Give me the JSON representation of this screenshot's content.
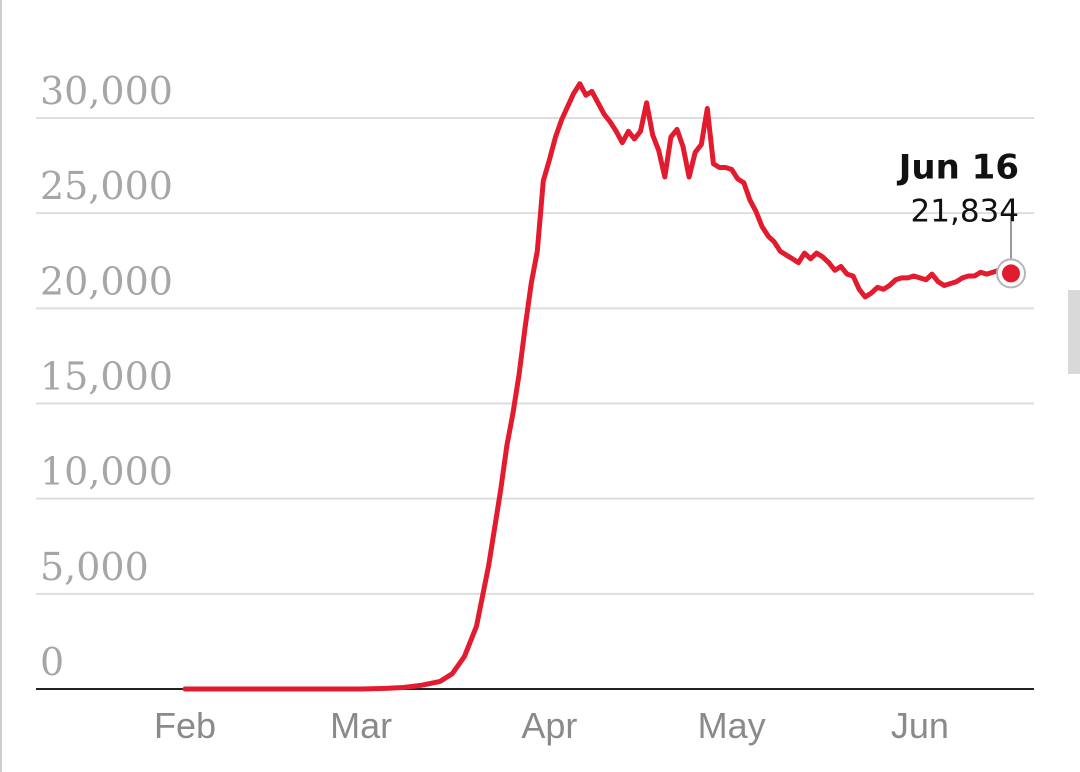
{
  "chart_data": {
    "type": "line",
    "title": "",
    "xlabel": "",
    "ylabel": "",
    "ylim": [
      0,
      30000
    ],
    "y_ticks": [
      {
        "value": 0,
        "label": "0"
      },
      {
        "value": 5000,
        "label": "5,000"
      },
      {
        "value": 10000,
        "label": "10,000"
      },
      {
        "value": 15000,
        "label": "15,000"
      },
      {
        "value": 20000,
        "label": "20,000"
      },
      {
        "value": 25000,
        "label": "25,000"
      },
      {
        "value": 30000,
        "label": "30,000"
      }
    ],
    "x_ticks": [
      {
        "date": "2020-02-01",
        "label": "Feb"
      },
      {
        "date": "2020-03-01",
        "label": "Mar"
      },
      {
        "date": "2020-04-01",
        "label": "Apr"
      },
      {
        "date": "2020-05-01",
        "label": "May"
      },
      {
        "date": "2020-06-01",
        "label": "Jun"
      }
    ],
    "xlim": [
      "2020-02-01",
      "2020-06-16"
    ],
    "grid": true,
    "line_color": "#e31b2f",
    "series": [
      {
        "points": [
          [
            "2020-02-01",
            0
          ],
          [
            "2020-02-05",
            0
          ],
          [
            "2020-02-10",
            0
          ],
          [
            "2020-02-15",
            0
          ],
          [
            "2020-02-20",
            0
          ],
          [
            "2020-02-25",
            0
          ],
          [
            "2020-03-01",
            0
          ],
          [
            "2020-03-05",
            30
          ],
          [
            "2020-03-08",
            80
          ],
          [
            "2020-03-11",
            200
          ],
          [
            "2020-03-14",
            400
          ],
          [
            "2020-03-16",
            800
          ],
          [
            "2020-03-18",
            1700
          ],
          [
            "2020-03-20",
            3300
          ],
          [
            "2020-03-22",
            6500
          ],
          [
            "2020-03-24",
            10500
          ],
          [
            "2020-03-25",
            12800
          ],
          [
            "2020-03-26",
            14500
          ],
          [
            "2020-03-27",
            16500
          ],
          [
            "2020-03-28",
            19000
          ],
          [
            "2020-03-29",
            21300
          ],
          [
            "2020-03-30",
            23000
          ],
          [
            "2020-03-31",
            26700
          ],
          [
            "2020-04-01",
            27800
          ],
          [
            "2020-04-02",
            29000
          ],
          [
            "2020-04-03",
            29900
          ],
          [
            "2020-04-04",
            30600
          ],
          [
            "2020-04-05",
            31300
          ],
          [
            "2020-04-06",
            31800
          ],
          [
            "2020-04-07",
            31200
          ],
          [
            "2020-04-08",
            31400
          ],
          [
            "2020-04-09",
            30800
          ],
          [
            "2020-04-10",
            30200
          ],
          [
            "2020-04-11",
            29800
          ],
          [
            "2020-04-12",
            29300
          ],
          [
            "2020-04-13",
            28700
          ],
          [
            "2020-04-14",
            29300
          ],
          [
            "2020-04-15",
            28900
          ],
          [
            "2020-04-16",
            29300
          ],
          [
            "2020-04-17",
            30800
          ],
          [
            "2020-04-18",
            29100
          ],
          [
            "2020-04-19",
            28300
          ],
          [
            "2020-04-20",
            26900
          ],
          [
            "2020-04-21",
            29000
          ],
          [
            "2020-04-22",
            29400
          ],
          [
            "2020-04-23",
            28500
          ],
          [
            "2020-04-24",
            26900
          ],
          [
            "2020-04-25",
            28200
          ],
          [
            "2020-04-26",
            28600
          ],
          [
            "2020-04-27",
            30500
          ],
          [
            "2020-04-28",
            27600
          ],
          [
            "2020-04-29",
            27400
          ],
          [
            "2020-04-30",
            27400
          ],
          [
            "2020-05-01",
            27300
          ],
          [
            "2020-05-02",
            26800
          ],
          [
            "2020-05-03",
            26600
          ],
          [
            "2020-05-04",
            25700
          ],
          [
            "2020-05-05",
            25100
          ],
          [
            "2020-05-06",
            24300
          ],
          [
            "2020-05-07",
            23800
          ],
          [
            "2020-05-08",
            23500
          ],
          [
            "2020-05-09",
            23000
          ],
          [
            "2020-05-10",
            22800
          ],
          [
            "2020-05-11",
            22600
          ],
          [
            "2020-05-12",
            22400
          ],
          [
            "2020-05-13",
            22900
          ],
          [
            "2020-05-14",
            22600
          ],
          [
            "2020-05-15",
            22900
          ],
          [
            "2020-05-16",
            22700
          ],
          [
            "2020-05-17",
            22400
          ],
          [
            "2020-05-18",
            22000
          ],
          [
            "2020-05-19",
            22200
          ],
          [
            "2020-05-20",
            21800
          ],
          [
            "2020-05-21",
            21700
          ],
          [
            "2020-05-22",
            21000
          ],
          [
            "2020-05-23",
            20600
          ],
          [
            "2020-05-24",
            20800
          ],
          [
            "2020-05-25",
            21100
          ],
          [
            "2020-05-26",
            21000
          ],
          [
            "2020-05-27",
            21200
          ],
          [
            "2020-05-28",
            21500
          ],
          [
            "2020-05-29",
            21600
          ],
          [
            "2020-05-30",
            21600
          ],
          [
            "2020-05-31",
            21700
          ],
          [
            "2020-06-01",
            21600
          ],
          [
            "2020-06-02",
            21500
          ],
          [
            "2020-06-03",
            21800
          ],
          [
            "2020-06-04",
            21400
          ],
          [
            "2020-06-05",
            21200
          ],
          [
            "2020-06-06",
            21300
          ],
          [
            "2020-06-07",
            21400
          ],
          [
            "2020-06-08",
            21600
          ],
          [
            "2020-06-09",
            21700
          ],
          [
            "2020-06-10",
            21700
          ],
          [
            "2020-06-11",
            21900
          ],
          [
            "2020-06-12",
            21800
          ],
          [
            "2020-06-13",
            21900
          ],
          [
            "2020-06-14",
            22000
          ],
          [
            "2020-06-15",
            21900
          ],
          [
            "2020-06-16",
            21834
          ]
        ]
      }
    ],
    "annotation": {
      "date": "2020-06-16",
      "value": 21834,
      "date_label": "Jun 16",
      "value_label": "21,834"
    }
  }
}
